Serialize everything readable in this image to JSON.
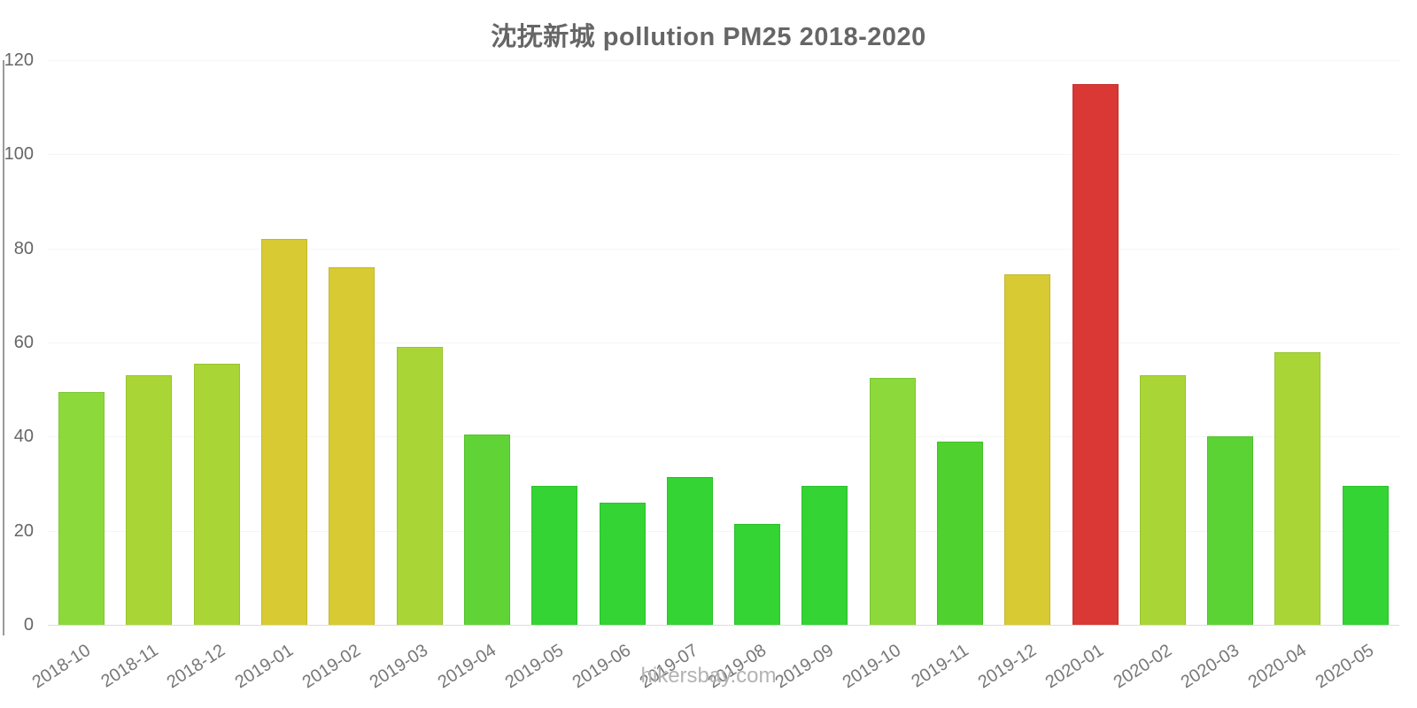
{
  "page": {
    "footer": "hikersbay.com"
  },
  "colors": {
    "title_text": "#666666",
    "axis_text": "#666666",
    "x_tick_text": "#787878",
    "footer_text": "#b3b3b3",
    "axis_line": "#9a9a9a",
    "gridline": "#f5f5f5",
    "baseline": "#dddddd",
    "green_light": "#8CD93C",
    "yellow_green": "#A9D636",
    "green_medium": "#60D437",
    "green_bright": "#33D433",
    "yellow": "#D8CA33",
    "red": "#D93835"
  },
  "chart_data": {
    "type": "bar",
    "title": "沈抚新城 pollution PM25 2018-2020",
    "xlabel": "",
    "ylabel": "",
    "ylim": [
      0,
      120
    ],
    "yticks": [
      0,
      20,
      40,
      60,
      80,
      100,
      120
    ],
    "grid": true,
    "legend": false,
    "categories": [
      "2018-10",
      "2018-11",
      "2018-12",
      "2019-01",
      "2019-02",
      "2019-03",
      "2019-04",
      "2019-05",
      "2019-06",
      "2019-07",
      "2019-08",
      "2019-09",
      "2019-10",
      "2019-11",
      "2019-12",
      "2020-01",
      "2020-02",
      "2020-03",
      "2020-04",
      "2020-05"
    ],
    "series": [
      {
        "name": "PM25",
        "values": [
          49.5,
          53,
          55.5,
          82,
          76,
          59,
          40.5,
          29.5,
          26,
          31.5,
          21.5,
          29.5,
          52.5,
          39,
          74.5,
          115,
          53,
          40,
          58,
          29.5
        ],
        "bar_fills": [
          "#8CD93C",
          "#A9D636",
          "#A9D636",
          "#D8CA33",
          "#D8CA33",
          "#A9D636",
          "#60D437",
          "#33D433",
          "#33D433",
          "#33D433",
          "#33D433",
          "#33D433",
          "#8CD93C",
          "#4FD22F",
          "#D8CA33",
          "#D93835",
          "#A9D636",
          "#5BD334",
          "#A9D636",
          "#33D433"
        ],
        "bar_strokes": [
          "#7cc634",
          "#98c32f",
          "#98c32f",
          "#c4b72c",
          "#c4b72c",
          "#98c32f",
          "#54c02f",
          "#2cc12c",
          "#2cc12c",
          "#2cc12c",
          "#2cc12c",
          "#2cc12c",
          "#7cc634",
          "#45bf28",
          "#c4b72c",
          "#c62f2d",
          "#98c32f",
          "#50c02d",
          "#98c32f",
          "#2cc12c"
        ]
      }
    ]
  }
}
